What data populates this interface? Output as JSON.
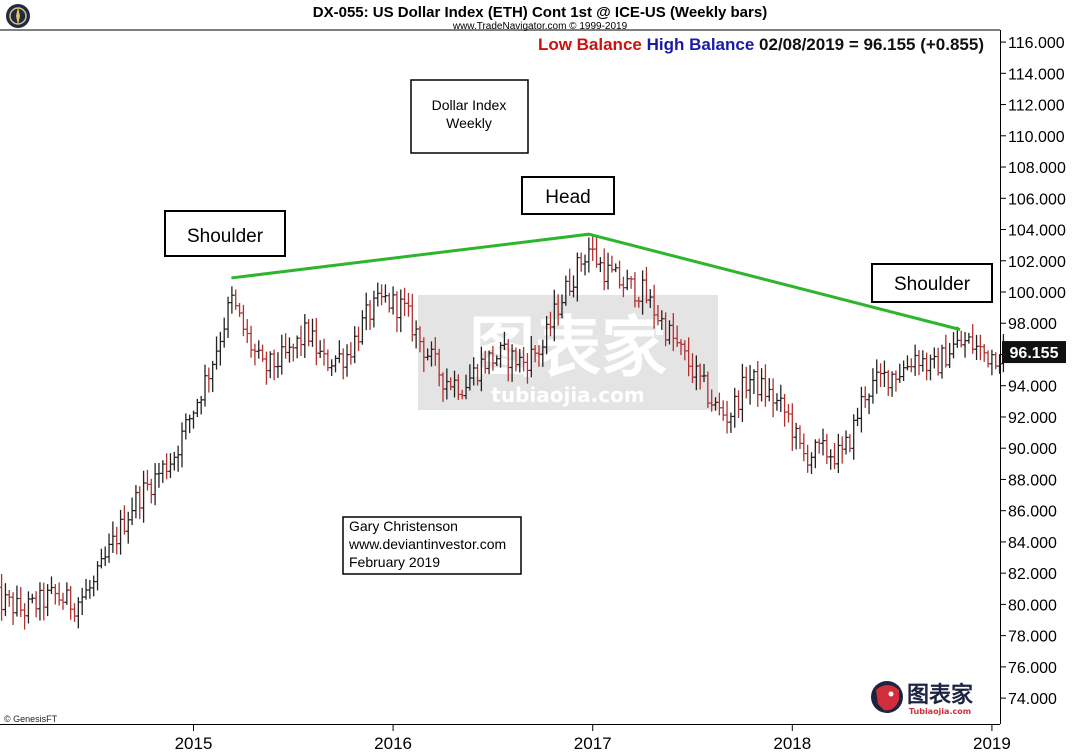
{
  "title": "DX-055:  US Dollar Index (ETH) Cont 1st @ ICE-US  (Weekly bars)",
  "subtitle": "www.TradeNavigator.com © 1999-2019",
  "legend": {
    "low_label": "Low Balance",
    "high_label": "High Balance",
    "quote": "02/08/2019 = 96.155 (+0.855)"
  },
  "last_price_label": "96.155",
  "footer_credit": "© GenesisFT",
  "info_box": {
    "line1": "Dollar Index",
    "line2": "Weekly"
  },
  "author_box": {
    "line1": "Gary Christenson",
    "line2": "www.deviantinvestor.com",
    "line3": "February 2019"
  },
  "watermark": {
    "cn": "图表家",
    "url": "tubiaojia.com"
  },
  "logo": {
    "cn": "图表家",
    "url": "Tubiaojia.com"
  },
  "colors": {
    "neckline": "#2db52d",
    "bar_up": "#222222",
    "bar_down": "#b03030",
    "low_balance": "#cc1111",
    "high_balance": "#1a1aa8",
    "last_price_bg": "#111111"
  },
  "icons": {
    "corner_logo": "compass-icon",
    "brand_logo": "skull-profile-icon"
  },
  "chart_data": {
    "type": "ohlc-bar",
    "frequency": "weekly",
    "y_axis": {
      "min": 72,
      "max": 117,
      "step": 2,
      "side": "right",
      "tick_format": "0.000"
    },
    "x_axis": {
      "ticks": [
        "2015",
        "2016",
        "2017",
        "2018",
        "2019"
      ],
      "tick_values": [
        2015,
        2016,
        2017,
        2018,
        2019
      ]
    },
    "grid": false,
    "keypoints": [
      {
        "t": 2014.0,
        "p": 80.4
      },
      {
        "t": 2014.15,
        "p": 79.6
      },
      {
        "t": 2014.3,
        "p": 80.6
      },
      {
        "t": 2014.4,
        "p": 80.0
      },
      {
        "t": 2014.5,
        "p": 81.2
      },
      {
        "t": 2014.6,
        "p": 84.0
      },
      {
        "t": 2014.7,
        "p": 86.5
      },
      {
        "t": 2014.8,
        "p": 88.0
      },
      {
        "t": 2014.9,
        "p": 89.5
      },
      {
        "t": 2015.0,
        "p": 92.5
      },
      {
        "t": 2015.08,
        "p": 95.0
      },
      {
        "t": 2015.19,
        "p": 99.5
      },
      {
        "t": 2015.27,
        "p": 97.0
      },
      {
        "t": 2015.35,
        "p": 95.0
      },
      {
        "t": 2015.48,
        "p": 96.0
      },
      {
        "t": 2015.57,
        "p": 97.5
      },
      {
        "t": 2015.65,
        "p": 95.5
      },
      {
        "t": 2015.77,
        "p": 96.0
      },
      {
        "t": 2015.87,
        "p": 98.5
      },
      {
        "t": 2015.95,
        "p": 99.5
      },
      {
        "t": 2016.05,
        "p": 99.0
      },
      {
        "t": 2016.15,
        "p": 96.5
      },
      {
        "t": 2016.25,
        "p": 94.5
      },
      {
        "t": 2016.35,
        "p": 94.0
      },
      {
        "t": 2016.45,
        "p": 95.5
      },
      {
        "t": 2016.55,
        "p": 96.0
      },
      {
        "t": 2016.65,
        "p": 95.5
      },
      {
        "t": 2016.75,
        "p": 96.5
      },
      {
        "t": 2016.82,
        "p": 99.0
      },
      {
        "t": 2016.92,
        "p": 101.5
      },
      {
        "t": 2016.98,
        "p": 102.8
      },
      {
        "t": 2017.05,
        "p": 101.5
      },
      {
        "t": 2017.15,
        "p": 100.5
      },
      {
        "t": 2017.25,
        "p": 100.0
      },
      {
        "t": 2017.35,
        "p": 98.0
      },
      {
        "t": 2017.45,
        "p": 96.0
      },
      {
        "t": 2017.55,
        "p": 94.0
      },
      {
        "t": 2017.62,
        "p": 92.5
      },
      {
        "t": 2017.68,
        "p": 92.0
      },
      {
        "t": 2017.78,
        "p": 94.5
      },
      {
        "t": 2017.88,
        "p": 93.5
      },
      {
        "t": 2017.98,
        "p": 92.0
      },
      {
        "t": 2018.05,
        "p": 89.5
      },
      {
        "t": 2018.15,
        "p": 89.8
      },
      {
        "t": 2018.25,
        "p": 89.5
      },
      {
        "t": 2018.3,
        "p": 91.0
      },
      {
        "t": 2018.36,
        "p": 93.5
      },
      {
        "t": 2018.45,
        "p": 94.5
      },
      {
        "t": 2018.55,
        "p": 95.0
      },
      {
        "t": 2018.62,
        "p": 96.0
      },
      {
        "t": 2018.7,
        "p": 95.0
      },
      {
        "t": 2018.8,
        "p": 96.5
      },
      {
        "t": 2018.88,
        "p": 96.8
      },
      {
        "t": 2018.97,
        "p": 96.0
      },
      {
        "t": 2019.11,
        "p": 96.155
      }
    ],
    "neckline": [
      {
        "t": 2015.19,
        "p": 100.9
      },
      {
        "t": 2016.98,
        "p": 103.7
      },
      {
        "t": 2018.84,
        "p": 97.6
      }
    ],
    "annotations": [
      {
        "text": "Shoulder",
        "t": 2015.19,
        "p": 100.9
      },
      {
        "text": "Head",
        "t": 2016.98,
        "p": 103.7
      },
      {
        "text": "Shoulder",
        "t": 2018.84,
        "p": 97.6
      }
    ],
    "last_value": 96.155
  }
}
